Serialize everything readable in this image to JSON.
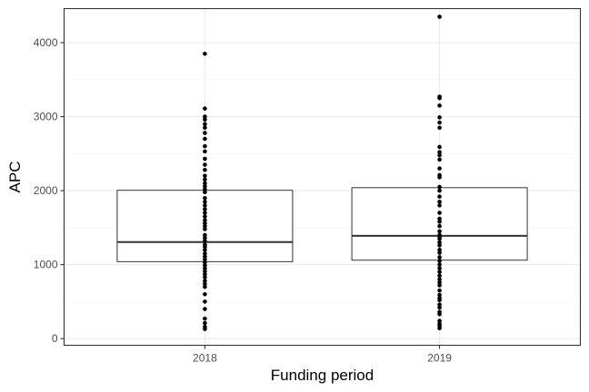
{
  "chart_data": {
    "type": "box",
    "title": "",
    "xlabel": "Funding period",
    "ylabel": "APC",
    "categories": [
      "2018",
      "2019"
    ],
    "ylim": [
      -90,
      4460
    ],
    "yticks": [
      0,
      1000,
      2000,
      3000,
      4000
    ],
    "grid": true,
    "boxes": [
      {
        "category": "2018",
        "q1": 1040,
        "median": 1305,
        "q3": 2005
      },
      {
        "category": "2019",
        "q1": 1060,
        "median": 1390,
        "q3": 2040
      }
    ],
    "points": [
      {
        "category": "2018",
        "values": [
          3850,
          3110,
          3000,
          2960,
          2900,
          2850,
          2780,
          2700,
          2600,
          2530,
          2430,
          2350,
          2280,
          2200,
          2150,
          2100,
          2060,
          2020,
          1980,
          1900,
          1850,
          1800,
          1750,
          1700,
          1650,
          1600,
          1560,
          1520,
          1480,
          1400,
          1360,
          1320,
          1270,
          1240,
          1200,
          1150,
          1110,
          1070,
          1030,
          990,
          950,
          910,
          870,
          830,
          780,
          740,
          700,
          600,
          500,
          400,
          270,
          210,
          160,
          130
        ]
      },
      {
        "category": "2019",
        "values": [
          4350,
          3270,
          3250,
          3150,
          2990,
          2920,
          2850,
          2590,
          2520,
          2480,
          2420,
          2300,
          2210,
          2180,
          2050,
          2000,
          1920,
          1850,
          1800,
          1700,
          1620,
          1580,
          1520,
          1450,
          1400,
          1380,
          1350,
          1300,
          1260,
          1200,
          1160,
          1100,
          1050,
          1000,
          950,
          900,
          850,
          800,
          760,
          720,
          650,
          590,
          550,
          520,
          460,
          420,
          360,
          330,
          240,
          200,
          170,
          140
        ]
      }
    ]
  }
}
